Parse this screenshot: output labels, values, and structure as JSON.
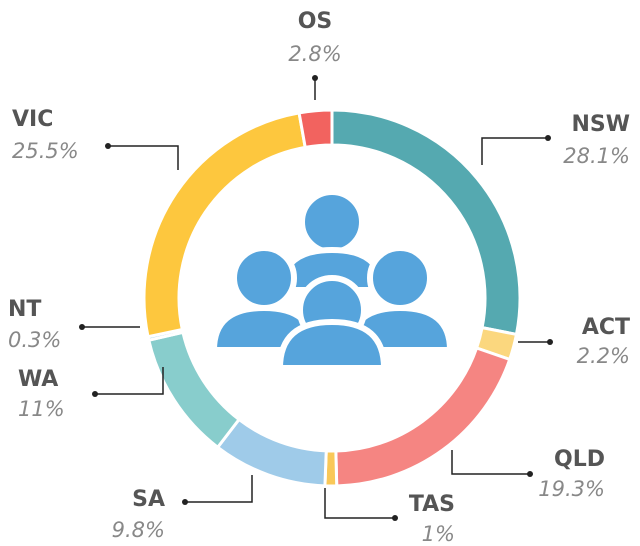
{
  "chart_data": {
    "type": "donut",
    "categories": [
      "NSW",
      "ACT",
      "QLD",
      "TAS",
      "SA",
      "WA",
      "NT",
      "VIC",
      "OS"
    ],
    "values": [
      28.1,
      2.2,
      19.3,
      1,
      9.8,
      11,
      0.3,
      25.5,
      2.8
    ],
    "value_labels": [
      "28.1%",
      "2.2%",
      "19.3%",
      "1%",
      "9.8%",
      "11%",
      "0.3%",
      "25.5%",
      "2.8%"
    ],
    "colors": [
      "#55a9b0",
      "#fbd77e",
      "#f58582",
      "#f9c858",
      "#9fcbe9",
      "#88cdcc",
      "#b7dbed",
      "#fdc73e",
      "#f2635f"
    ]
  }
}
